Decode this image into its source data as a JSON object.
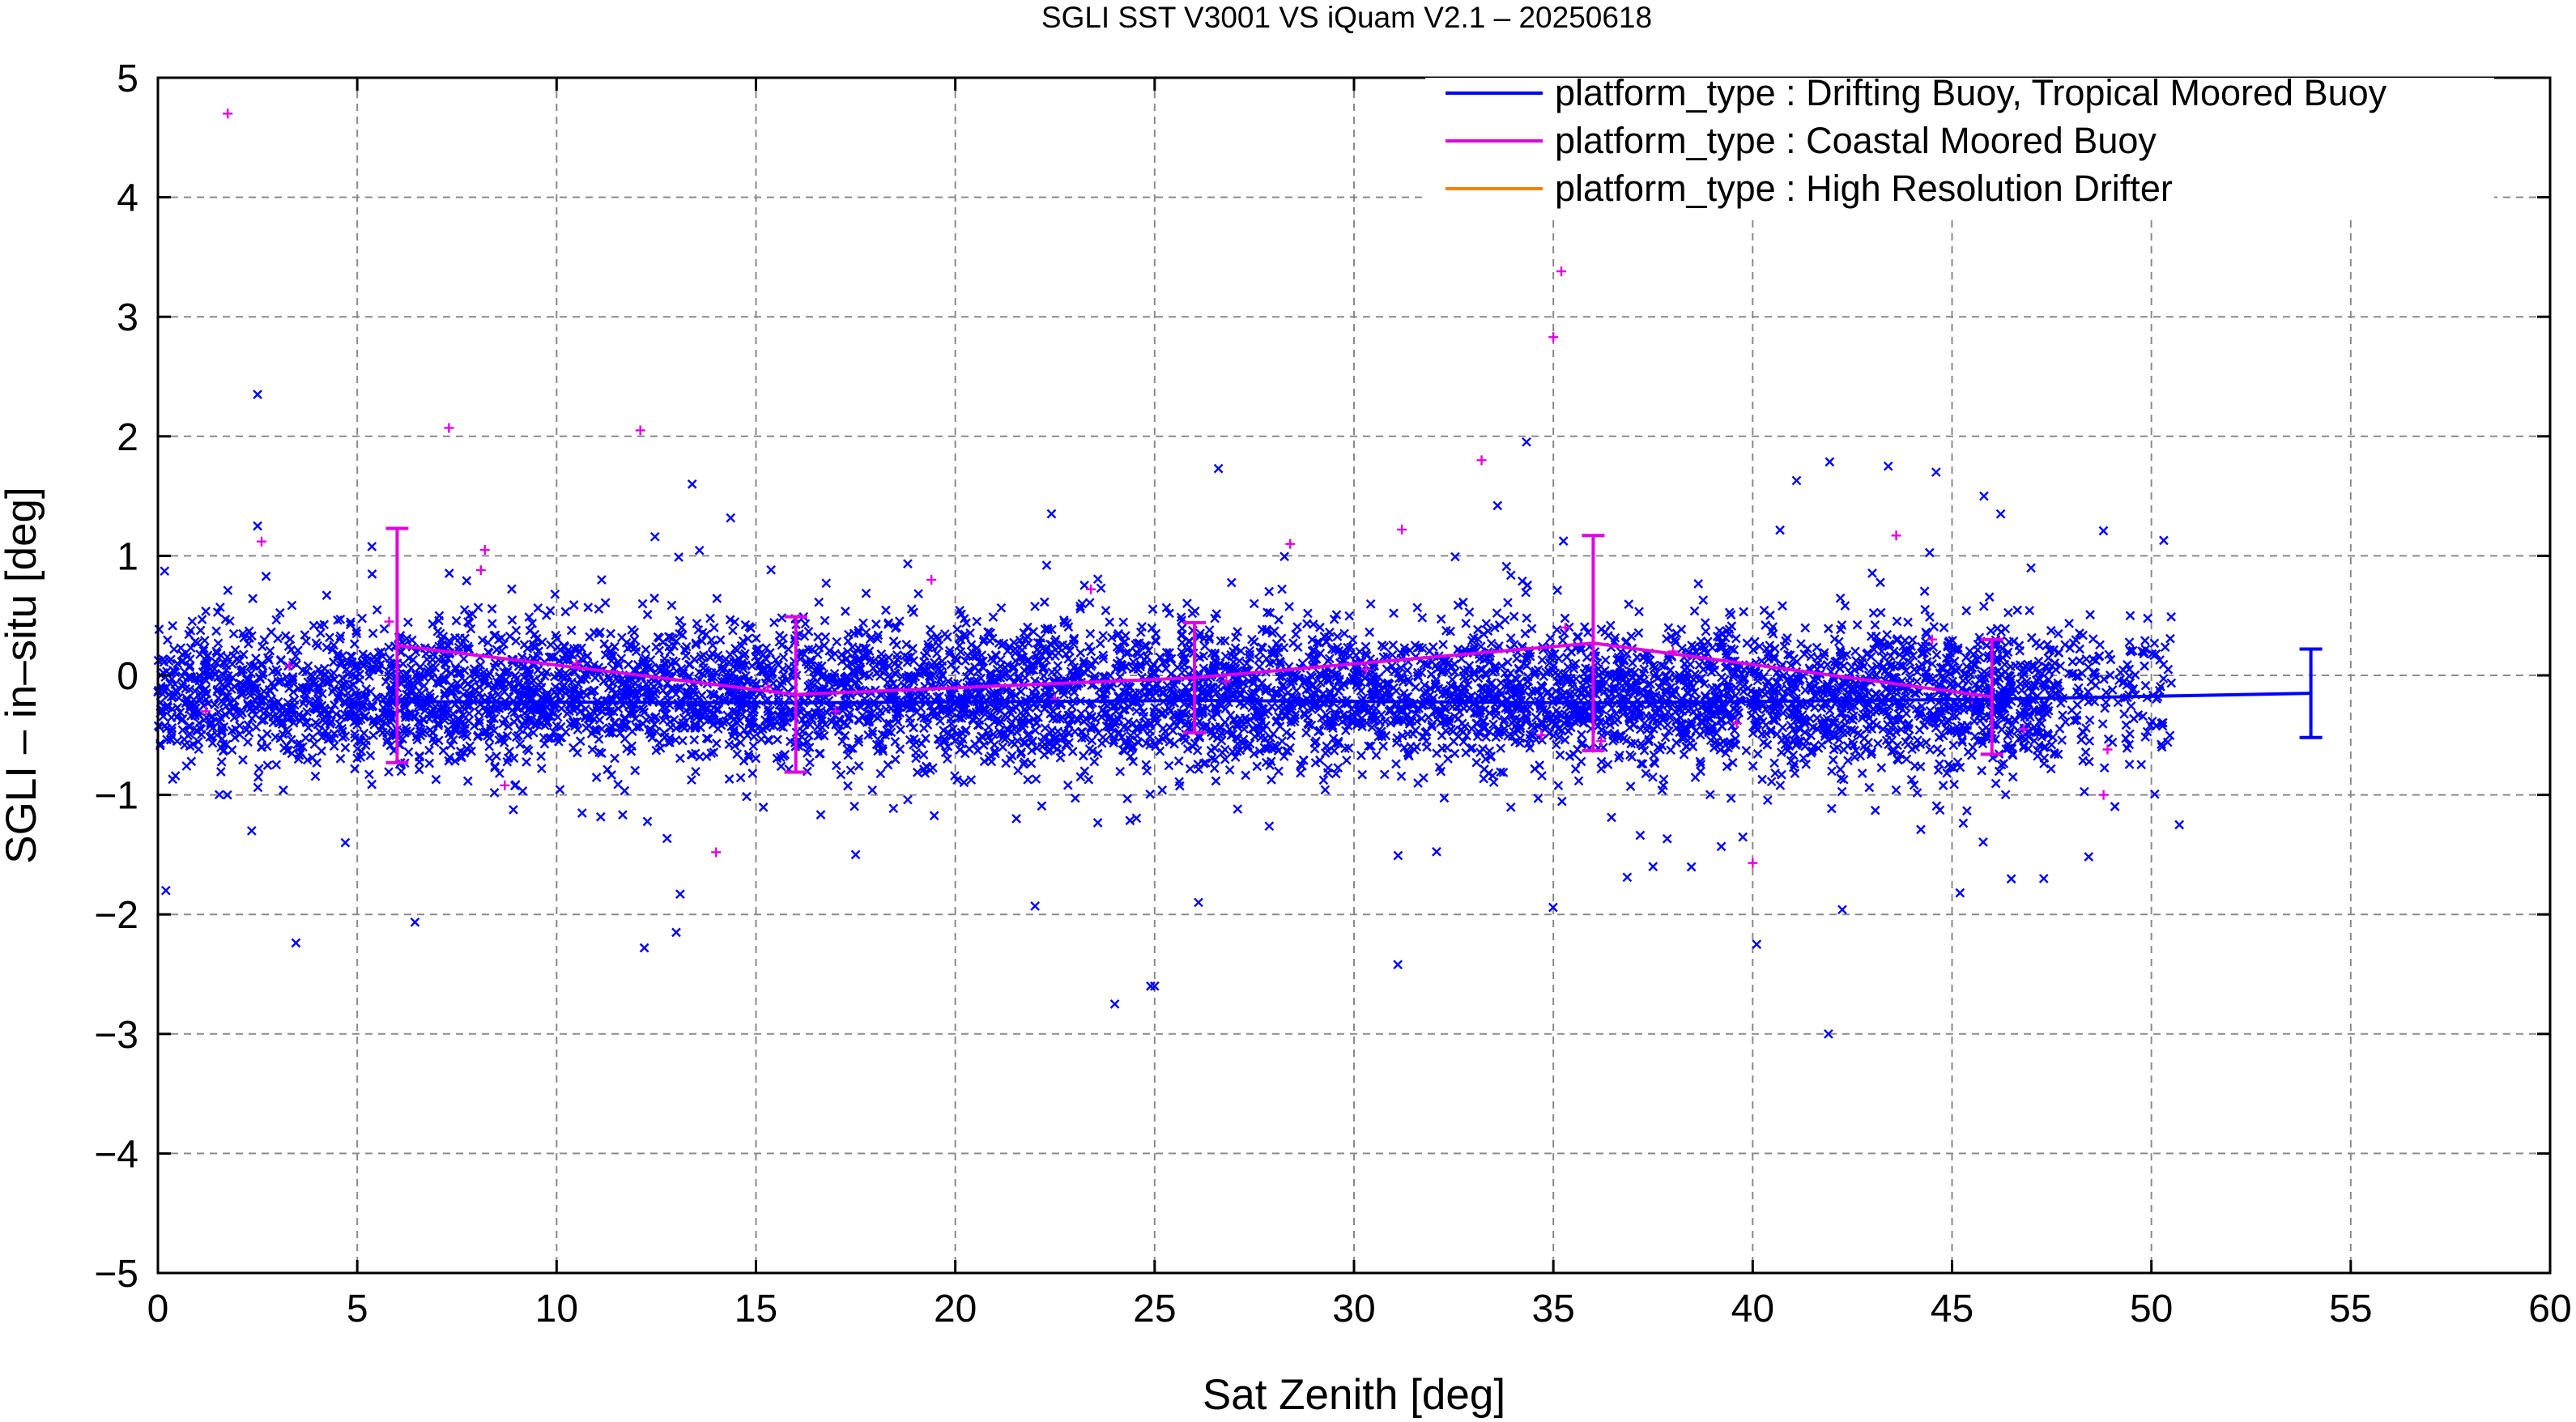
{
  "chart_data": {
    "type": "scatter",
    "title": "SGLI SST V3001 VS iQuam V2.1  – 20250618",
    "xlabel": "Sat Zenith [deg]",
    "ylabel": "SGLI – in–situ [deg]",
    "xlim": [
      0,
      60
    ],
    "ylim": [
      -5,
      5
    ],
    "x_ticks": [
      "0",
      "5",
      "10",
      "15",
      "20",
      "25",
      "30",
      "35",
      "40",
      "45",
      "50",
      "55",
      "60"
    ],
    "y_ticks": [
      "5",
      "4",
      "3",
      "2",
      "1",
      "0",
      "−1",
      "−2",
      "−3",
      "−4",
      "−5"
    ],
    "grid": true,
    "legend_position": "top-right",
    "series": [
      {
        "name": "platform_type : Drifting Buoy, Tropical Moored Buoy",
        "color": "#0000ff",
        "marker": "x",
        "scatter_generation": {
          "count": 6500,
          "x_range": [
            0,
            50.5
          ],
          "center": -0.17,
          "spread": 0.3
        },
        "outliers": [
          {
            "x": 0.2,
            "y": -1.8
          },
          {
            "x": 2.5,
            "y": 2.35
          },
          {
            "x": 2.5,
            "y": 1.25
          },
          {
            "x": 13.4,
            "y": 1.6
          },
          {
            "x": 12.2,
            "y": -2.28
          },
          {
            "x": 13.0,
            "y": -2.15
          },
          {
            "x": 13.1,
            "y": -1.83
          },
          {
            "x": 24.0,
            "y": -2.75
          },
          {
            "x": 24.9,
            "y": -2.6
          },
          {
            "x": 25.0,
            "y": -2.6
          },
          {
            "x": 26.6,
            "y": 1.73
          },
          {
            "x": 26.1,
            "y": -1.9
          },
          {
            "x": 31.1,
            "y": -2.42
          },
          {
            "x": 33.6,
            "y": 1.42
          },
          {
            "x": 40.1,
            "y": -2.25
          },
          {
            "x": 41.9,
            "y": -3.0
          },
          {
            "x": 43.4,
            "y": 1.75
          },
          {
            "x": 44.6,
            "y": 1.7
          },
          {
            "x": 45.8,
            "y": 1.5
          },
          {
            "x": 41.1,
            "y": 1.63
          },
          {
            "x": 22.0,
            "y": -1.93
          },
          {
            "x": 17.5,
            "y": -1.5
          },
          {
            "x": 37.5,
            "y": -1.6
          },
          {
            "x": 45.2,
            "y": -1.82
          },
          {
            "x": 47.3,
            "y": -1.7
          },
          {
            "x": 50.7,
            "y": -1.25
          },
          {
            "x": 4.7,
            "y": -1.4
          }
        ],
        "bins_x": [
          6,
          16,
          26,
          36,
          46,
          54
        ],
        "bins_mean": [
          -0.22,
          -0.23,
          -0.21,
          -0.23,
          -0.2,
          -0.15
        ],
        "bins_std": [
          0.32,
          0.32,
          0.32,
          0.34,
          0.32,
          0.37
        ],
        "error_bars_shown_at": [
          54
        ]
      },
      {
        "name": "platform_type : Coastal Moored Buoy",
        "color": "#e000e0",
        "marker": "+",
        "points": [
          {
            "x": 1.75,
            "y": 4.7
          },
          {
            "x": 2.6,
            "y": 1.12
          },
          {
            "x": 7.3,
            "y": 2.07
          },
          {
            "x": 12.1,
            "y": 2.05
          },
          {
            "x": 8.2,
            "y": 1.05
          },
          {
            "x": 8.1,
            "y": 0.88
          },
          {
            "x": 3.3,
            "y": 0.08
          },
          {
            "x": 5.8,
            "y": 0.45
          },
          {
            "x": 14.0,
            "y": -1.48
          },
          {
            "x": 8.7,
            "y": -0.92
          },
          {
            "x": 19.4,
            "y": 0.8
          },
          {
            "x": 23.4,
            "y": 0.72
          },
          {
            "x": 28.4,
            "y": 1.1
          },
          {
            "x": 31.2,
            "y": 1.22
          },
          {
            "x": 33.2,
            "y": 1.8
          },
          {
            "x": 35.0,
            "y": 2.83
          },
          {
            "x": 35.2,
            "y": 3.38
          },
          {
            "x": 35.3,
            "y": 0.4
          },
          {
            "x": 34.7,
            "y": -0.5
          },
          {
            "x": 36.2,
            "y": -0.55
          },
          {
            "x": 38.0,
            "y": 0.2
          },
          {
            "x": 39.6,
            "y": -0.4
          },
          {
            "x": 40.0,
            "y": -1.57
          },
          {
            "x": 43.6,
            "y": 1.17
          },
          {
            "x": 44.5,
            "y": 0.3
          },
          {
            "x": 48.8,
            "y": -1.0
          },
          {
            "x": 48.9,
            "y": -0.62
          },
          {
            "x": 22.5,
            "y": -0.2
          },
          {
            "x": 26.8,
            "y": -0.05
          },
          {
            "x": 17.0,
            "y": -0.3
          },
          {
            "x": 10.5,
            "y": 0.1
          },
          {
            "x": 30.3,
            "y": 0.05
          },
          {
            "x": 45.5,
            "y": -0.2
          },
          {
            "x": 46.8,
            "y": -0.45
          },
          {
            "x": 1.2,
            "y": -0.3
          },
          {
            "x": 15.3,
            "y": -0.1
          }
        ],
        "bins_x": [
          6,
          16,
          26,
          36,
          46
        ],
        "bins_mean": [
          0.25,
          -0.16,
          -0.02,
          0.27,
          -0.18
        ],
        "bins_std": [
          0.98,
          0.65,
          0.46,
          0.9,
          0.48
        ]
      },
      {
        "name": "platform_type : High Resolution Drifter",
        "color": "#ff8000",
        "points": []
      }
    ]
  }
}
